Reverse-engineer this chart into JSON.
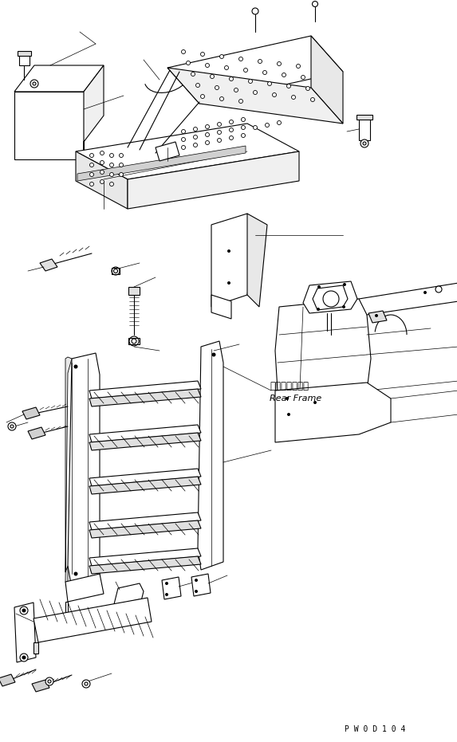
{
  "bg_color": "#ffffff",
  "line_color": "#000000",
  "fig_width": 5.73,
  "fig_height": 9.31,
  "dpi": 100,
  "watermark": "P W 0 D 1 0 4",
  "label_rear_frame_ja": "リヤーフレーム",
  "label_rear_frame_en": "Rear Frame"
}
